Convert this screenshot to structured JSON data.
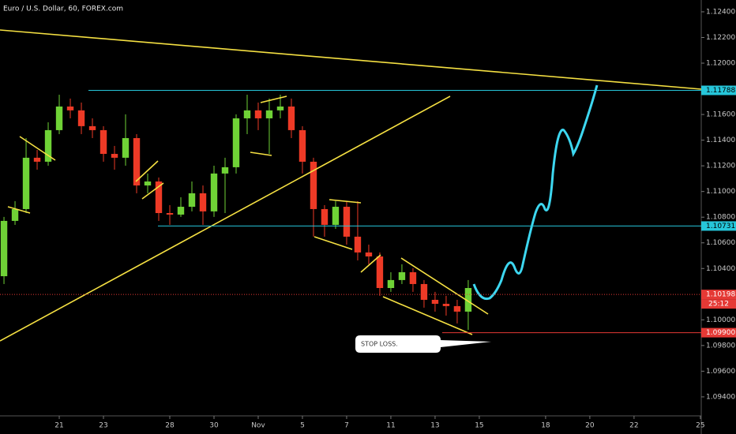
{
  "chart_data": {
    "type": "candlestick",
    "title": "Euro / U.S. Dollar, 60, FOREX.com",
    "up_color": "#6fd236",
    "down_color": "#ee3a26",
    "xlim": [
      -2.68,
      29.04
    ],
    "ylim": [
      1.09252,
      1.12492
    ],
    "xticks": [
      {
        "value": 0,
        "label": "21"
      },
      {
        "value": 2,
        "label": "23"
      },
      {
        "value": 5,
        "label": "28"
      },
      {
        "value": 7,
        "label": "30"
      },
      {
        "value": 9,
        "label": "Nov"
      },
      {
        "value": 11,
        "label": "5"
      },
      {
        "value": 13,
        "label": "7"
      },
      {
        "value": 15,
        "label": "11"
      },
      {
        "value": 17,
        "label": "13"
      },
      {
        "value": 19,
        "label": "15"
      },
      {
        "value": 22,
        "label": "18"
      },
      {
        "value": 24,
        "label": "20"
      },
      {
        "value": 26,
        "label": "22"
      },
      {
        "value": 29,
        "label": "25"
      }
    ],
    "yticks": [
      {
        "value": 1.124,
        "label": "1.12400"
      },
      {
        "value": 1.122,
        "label": "1.12200"
      },
      {
        "value": 1.12,
        "label": "1.12000"
      },
      {
        "value": 1.116,
        "label": "1.11600"
      },
      {
        "value": 1.114,
        "label": "1.11400"
      },
      {
        "value": 1.112,
        "label": "1.11200"
      },
      {
        "value": 1.11,
        "label": "1.11000"
      },
      {
        "value": 1.108,
        "label": "1.10800"
      },
      {
        "value": 1.106,
        "label": "1.10600"
      },
      {
        "value": 1.104,
        "label": "1.10400"
      },
      {
        "value": 1.1,
        "label": "1.10000"
      },
      {
        "value": 1.098,
        "label": "1.09800"
      },
      {
        "value": 1.096,
        "label": "1.09600"
      },
      {
        "value": 1.094,
        "label": "1.09400"
      }
    ],
    "candles": {
      "x": [
        -2.5,
        -2,
        -1.5,
        -1,
        -0.5,
        0,
        0.5,
        1,
        1.5,
        2,
        2.5,
        3,
        3.5,
        4,
        4.5,
        5,
        5.5,
        6,
        6.5,
        7,
        7.5,
        8,
        8.5,
        9,
        9.5,
        10,
        10.5,
        11,
        11.5,
        12,
        12.5,
        13,
        13.5,
        14,
        14.5,
        15,
        15.5,
        16,
        16.5,
        17,
        17.5,
        18,
        18.5
      ],
      "open": [
        1.1034,
        1.10771,
        1.10863,
        1.11263,
        1.11232,
        1.11478,
        1.11662,
        1.11632,
        1.11509,
        1.11478,
        1.11293,
        1.11263,
        1.11416,
        1.11047,
        1.11078,
        1.10832,
        1.1082,
        1.10881,
        1.10986,
        1.10845,
        1.1114,
        1.11189,
        1.1157,
        1.11632,
        1.1157,
        1.11632,
        1.11662,
        1.11478,
        1.11232,
        1.10863,
        1.1074,
        1.10881,
        1.10648,
        1.10525,
        1.10494,
        1.10248,
        1.1031,
        1.10371,
        1.10279,
        1.10156,
        1.10125,
        1.10107,
        1.10064
      ],
      "high": [
        1.10802,
        1.10925,
        1.11416,
        1.11324,
        1.11539,
        1.11754,
        1.11724,
        1.11693,
        1.1157,
        1.11509,
        1.11355,
        1.11601,
        1.11447,
        1.1114,
        1.11109,
        1.10894,
        1.10955,
        1.11078,
        1.11047,
        1.11201,
        1.11263,
        1.11601,
        1.11754,
        1.11693,
        1.11724,
        1.11754,
        1.11724,
        1.11509,
        1.11263,
        1.10894,
        1.10925,
        1.10925,
        1.10925,
        1.10586,
        1.10525,
        1.10371,
        1.10433,
        1.10402,
        1.1031,
        1.10218,
        1.10187,
        1.10156,
        1.1031
      ],
      "low": [
        1.10279,
        1.1074,
        1.10832,
        1.1117,
        1.11201,
        1.11447,
        1.1157,
        1.11447,
        1.11416,
        1.11232,
        1.1117,
        1.11201,
        1.10986,
        1.10986,
        1.10771,
        1.1074,
        1.10802,
        1.10845,
        1.1074,
        1.10802,
        1.10832,
        1.1114,
        1.11447,
        1.11478,
        1.11293,
        1.1157,
        1.11416,
        1.1114,
        1.10648,
        1.10648,
        1.10709,
        1.10586,
        1.10463,
        1.10433,
        1.10187,
        1.10218,
        1.10279,
        1.10218,
        1.10095,
        1.10064,
        1.10033,
        1.09972,
        1.09922
      ],
      "close": [
        1.10771,
        1.10863,
        1.11263,
        1.11232,
        1.11478,
        1.11662,
        1.11632,
        1.11509,
        1.11478,
        1.11293,
        1.11263,
        1.11416,
        1.11047,
        1.11078,
        1.10832,
        1.1082,
        1.10881,
        1.10986,
        1.10845,
        1.1114,
        1.11189,
        1.1157,
        1.11632,
        1.1157,
        1.11632,
        1.11662,
        1.11478,
        1.11232,
        1.10863,
        1.1074,
        1.10881,
        1.10648,
        1.10525,
        1.10494,
        1.10248,
        1.1031,
        1.10371,
        1.10279,
        1.10156,
        1.10125,
        1.10107,
        1.10064,
        1.10248
      ]
    },
    "levels": [
      {
        "value": 1.11788,
        "color": "#26c6da"
      },
      {
        "value": 1.10731,
        "color": "#26c6da"
      },
      {
        "value": 1.10198,
        "color": "#e53935"
      },
      {
        "value": 1.099,
        "label": "1.09900",
        "color": "#e53935"
      }
    ],
    "countdown": "25:12",
    "annotation": "STOP LOSS."
  }
}
